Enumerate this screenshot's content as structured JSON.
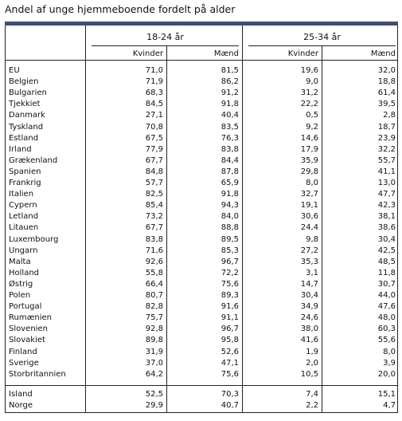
{
  "title": "Andel af unge hjemmeboende fordelt på alder",
  "groups": [
    "18-24 år",
    "25-34 år"
  ],
  "columns": [
    "Kvinder",
    "Mænd",
    "Kvinder",
    "Mænd"
  ],
  "rows": [
    {
      "country": "EU",
      "v": [
        "71,0",
        "81,5",
        "19,6",
        "32,0"
      ]
    },
    {
      "country": "Belgien",
      "v": [
        "71,9",
        "86,2",
        "9,0",
        "18,8"
      ]
    },
    {
      "country": "Bulgarien",
      "v": [
        "68,3",
        "91,2",
        "31,2",
        "61,4"
      ]
    },
    {
      "country": "Tjekkiet",
      "v": [
        "84,5",
        "91,8",
        "22,2",
        "39,5"
      ]
    },
    {
      "country": "Danmark",
      "v": [
        "27,1",
        "40,4",
        "0,5",
        "2,8"
      ]
    },
    {
      "country": "Tyskland",
      "v": [
        "70,8",
        "83,5",
        "9,2",
        "18,7"
      ]
    },
    {
      "country": "Estland",
      "v": [
        "67,5",
        "76,3",
        "14,6",
        "23,9"
      ]
    },
    {
      "country": "Irland",
      "v": [
        "77,9",
        "83,8",
        "17,9",
        "32,2"
      ]
    },
    {
      "country": "Grækenland",
      "v": [
        "67,7",
        "84,4",
        "35,9",
        "55,7"
      ]
    },
    {
      "country": "Spanien",
      "v": [
        "84,8",
        "87,8",
        "29,8",
        "41,1"
      ]
    },
    {
      "country": "Frankrig",
      "v": [
        "57,7",
        "65,9",
        "8,0",
        "13,0"
      ]
    },
    {
      "country": "Italien",
      "v": [
        "82,5",
        "91,8",
        "32,7",
        "47,7"
      ]
    },
    {
      "country": "Cypern",
      "v": [
        "85,4",
        "94,3",
        "19,1",
        "42,3"
      ]
    },
    {
      "country": "Letland",
      "v": [
        "73,2",
        "84,0",
        "30,6",
        "38,1"
      ]
    },
    {
      "country": "Litauen",
      "v": [
        "67,7",
        "88,8",
        "24,4",
        "38,6"
      ]
    },
    {
      "country": "Luxembourg",
      "v": [
        "83,8",
        "89,5",
        "9,8",
        "30,4"
      ]
    },
    {
      "country": "Ungarn",
      "v": [
        "71,6",
        "85,3",
        "27,2",
        "42,5"
      ]
    },
    {
      "country": "Malta",
      "v": [
        "92,6",
        "96,7",
        "35,3",
        "48,5"
      ]
    },
    {
      "country": "Holland",
      "v": [
        "55,8",
        "72,2",
        "3,1",
        "11,8"
      ]
    },
    {
      "country": "Østrig",
      "v": [
        "66,4",
        "75,6",
        "14,7",
        "30,7"
      ]
    },
    {
      "country": "Polen",
      "v": [
        "80,7",
        "89,3",
        "30,4",
        "44,0"
      ]
    },
    {
      "country": "Portugal",
      "v": [
        "82,8",
        "91,6",
        "34,9",
        "47,6"
      ]
    },
    {
      "country": "Rumænien",
      "v": [
        "75,7",
        "91,1",
        "24,6",
        "48,0"
      ]
    },
    {
      "country": "Slovenien",
      "v": [
        "92,8",
        "96,7",
        "38,0",
        "60,3"
      ]
    },
    {
      "country": "Slovakiet",
      "v": [
        "89,8",
        "95,8",
        "41,6",
        "55,6"
      ]
    },
    {
      "country": "Finland",
      "v": [
        "31,9",
        "52,6",
        "1,9",
        "8,0"
      ]
    },
    {
      "country": "Sverige",
      "v": [
        "37,0",
        "47,1",
        "2,0",
        "3,9"
      ]
    },
    {
      "country": "Storbritannien",
      "v": [
        "64,2",
        "75,6",
        "10,5",
        "20,0"
      ]
    }
  ],
  "extra_rows": [
    {
      "country": "Island",
      "v": [
        "52,5",
        "70,3",
        "7,4",
        "15,1"
      ]
    },
    {
      "country": "Norge",
      "v": [
        "29,9",
        "40,7",
        "2,2",
        "4,7"
      ]
    }
  ]
}
